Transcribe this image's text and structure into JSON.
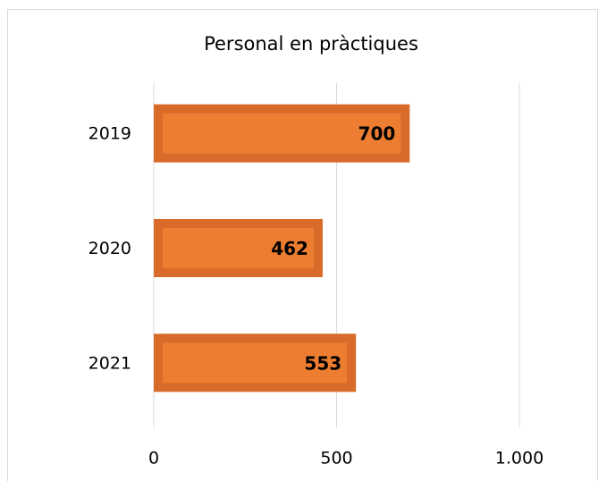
{
  "chart_data": {
    "type": "barh",
    "title": "Personal en pràctiques",
    "categories": [
      "2019",
      "2020",
      "2021"
    ],
    "values": [
      700,
      462,
      553
    ],
    "color": "#ed7d31",
    "edge_color": "#d86b29",
    "xlim": [
      0,
      1000
    ],
    "xticks": [
      0,
      500,
      {
        "value": 1000,
        "label": "1.000"
      }
    ],
    "grid": true
  }
}
